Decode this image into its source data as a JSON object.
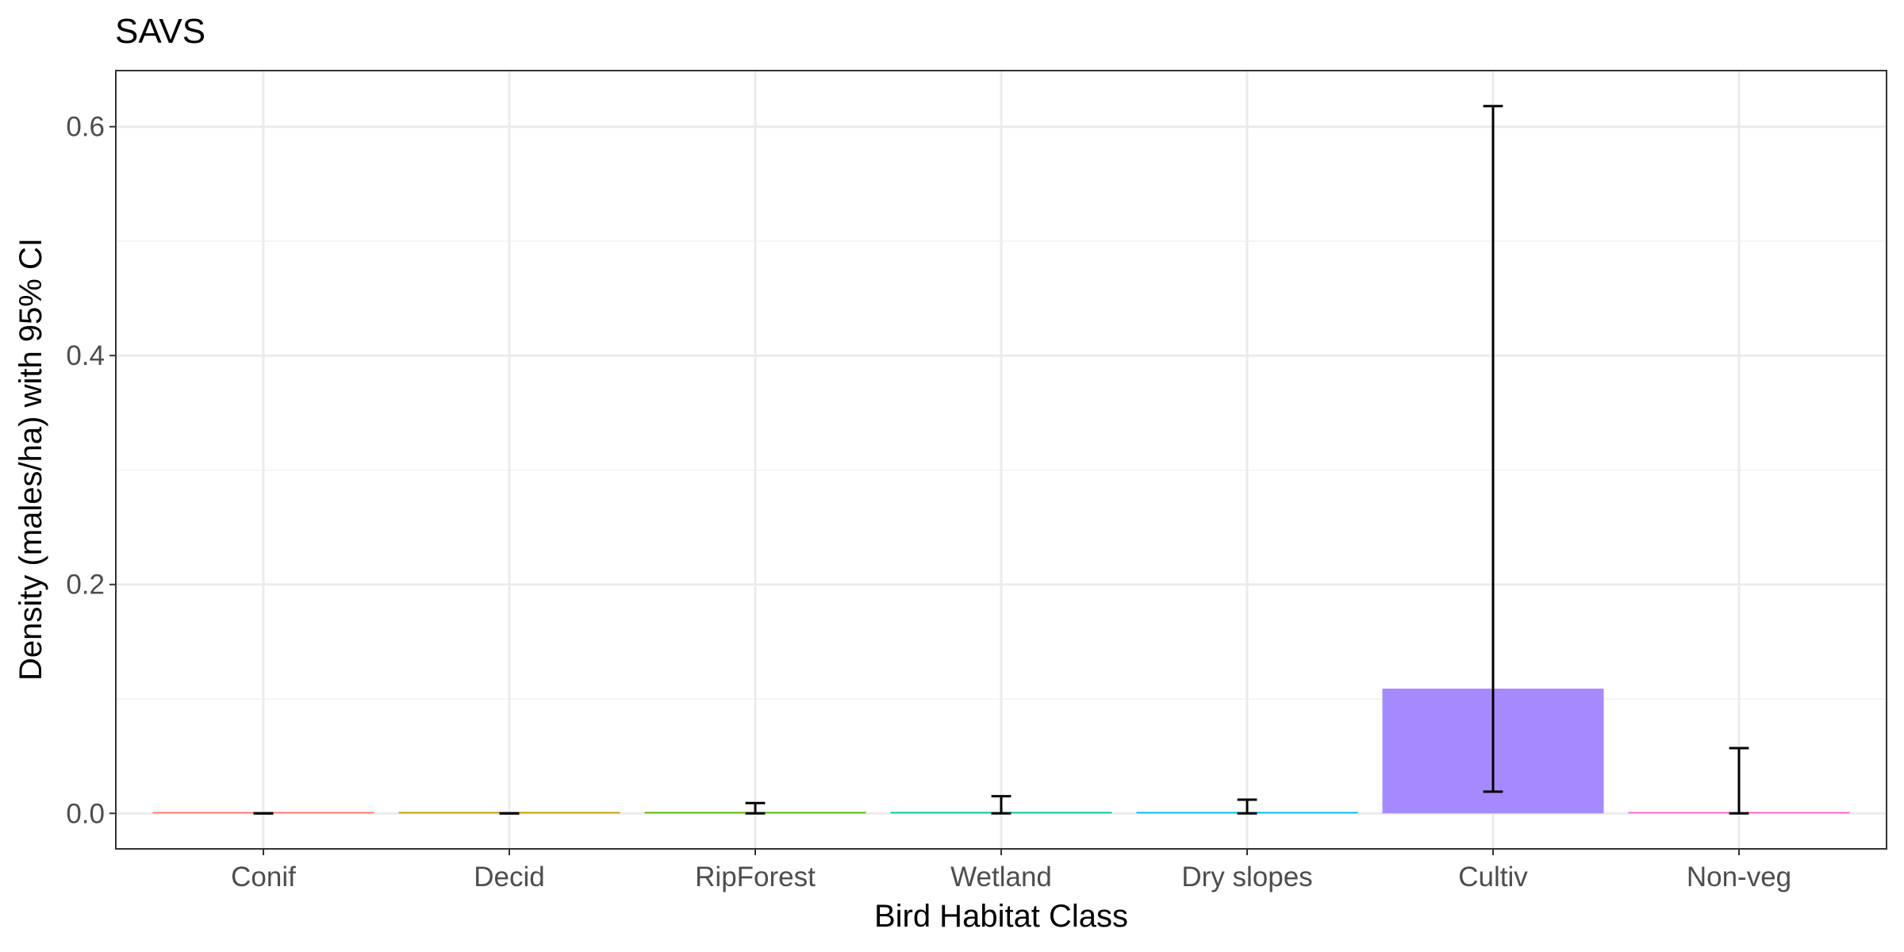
{
  "chart_data": {
    "type": "bar",
    "title": "SAVS",
    "xlabel": "Bird Habitat Class",
    "ylabel": "Density (males/ha) with 95% CI",
    "categories": [
      "Conif",
      "Decid",
      "RipForest",
      "Wetland",
      "Dry slopes",
      "Cultiv",
      "Non-veg"
    ],
    "values": [
      0.0,
      0.0,
      0.001,
      0.001,
      0.0005,
      0.109,
      0.001
    ],
    "ci_lower": [
      0.0,
      0.0,
      0.0,
      0.0,
      0.0,
      0.019,
      0.0
    ],
    "ci_upper": [
      0.0,
      0.0,
      0.009,
      0.015,
      0.012,
      0.618,
      0.057
    ],
    "colors": [
      "#F8766D",
      "#C49A00",
      "#53B400",
      "#00C094",
      "#00B6EB",
      "#A58AFF",
      "#FB61D7"
    ],
    "yticks": [
      0.0,
      0.2,
      0.4,
      0.6
    ],
    "ytick_labels": [
      "0.0",
      "0.2",
      "0.4",
      "0.6"
    ],
    "ylim": [
      -0.031,
      0.649
    ],
    "grid": true,
    "legend": "none"
  }
}
